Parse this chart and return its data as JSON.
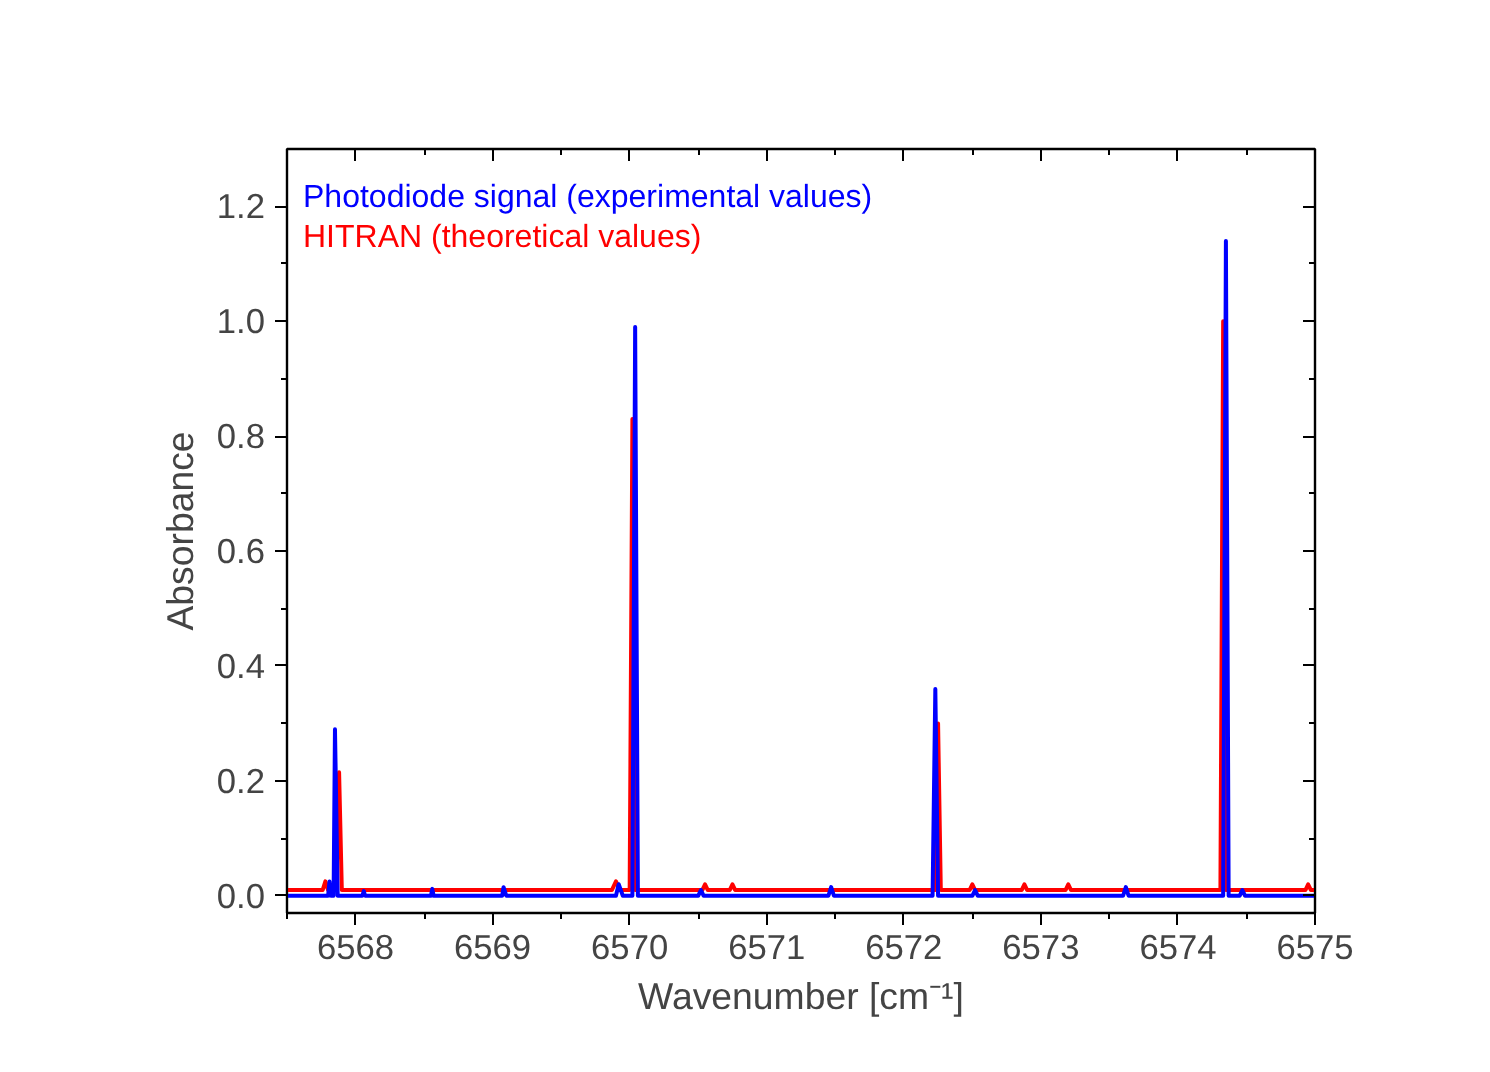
{
  "chart_data": {
    "type": "line",
    "xlabel": "Wavenumber [cm⁻¹]",
    "ylabel": "Absorbance",
    "legend": "top left",
    "marker": "none",
    "line_style": "solid",
    "grid": false,
    "xlim": [
      6567.5,
      6575
    ],
    "xticks": [
      {
        "value": 6567.5,
        "label": null
      },
      6568,
      {
        "value": 6568.5,
        "label": null
      },
      6569,
      {
        "value": 6569.5,
        "label": null
      },
      6570,
      {
        "value": 6570.5,
        "label": null
      },
      6571,
      {
        "value": 6571.5,
        "label": null
      },
      6572,
      {
        "value": 6572.5,
        "label": null
      },
      6573,
      {
        "value": 6573.5,
        "label": null
      },
      6574,
      {
        "value": 6574.5,
        "label": null
      },
      6575
    ],
    "ylim": [
      -0.03,
      1.3
    ],
    "yticks": [
      {
        "value": 0,
        "label": "0.0"
      },
      {
        "value": 0.1,
        "label": null
      },
      {
        "value": 0.2,
        "label": "0.2"
      },
      {
        "value": 0.3,
        "label": null
      },
      {
        "value": 0.4,
        "label": "0.4"
      },
      {
        "value": 0.5,
        "label": null
      },
      {
        "value": 0.6,
        "label": "0.6"
      },
      {
        "value": 0.7,
        "label": null
      },
      {
        "value": 0.8,
        "label": "0.8"
      },
      {
        "value": 0.9,
        "label": null
      },
      {
        "value": 1.0,
        "label": "1.0"
      },
      {
        "value": 1.1,
        "label": null
      },
      {
        "value": 1.2,
        "label": "1.2"
      }
    ],
    "series": [
      {
        "name": "Photodiode signal (experimental values)",
        "color": "#0000ff",
        "x": [
          6567.5,
          6567.8,
          6567.81,
          6567.82,
          6567.84,
          6567.85,
          6567.87,
          6568.05,
          6568.06,
          6568.07,
          6568.55,
          6568.56,
          6568.57,
          6569.07,
          6569.08,
          6569.1,
          6569.9,
          6569.92,
          6569.95,
          6570.02,
          6570.04,
          6570.06,
          6570.5,
          6570.52,
          6570.54,
          6571.45,
          6571.47,
          6571.49,
          6572.21,
          6572.23,
          6572.25,
          6572.5,
          6572.52,
          6572.54,
          6573.6,
          6573.62,
          6573.64,
          6574.33,
          6574.35,
          6574.37,
          6574.45,
          6574.47,
          6574.49,
          6575
        ],
        "values": [
          0,
          0,
          0.025,
          0,
          0,
          0.29,
          0,
          0,
          0.008,
          0,
          0,
          0.012,
          0,
          0,
          0.015,
          0,
          0,
          0.02,
          0,
          0,
          0.99,
          0,
          0,
          0.01,
          0,
          0,
          0.015,
          0,
          0,
          0.36,
          0,
          0,
          0.01,
          0,
          0,
          0.015,
          0,
          0,
          1.14,
          0,
          0,
          0.01,
          0,
          0
        ]
      },
      {
        "name": "HITRAN (theoretical values)",
        "color": "#ff0000",
        "x": [
          6567.5,
          6567.76,
          6567.78,
          6567.8,
          6567.86,
          6567.88,
          6567.9,
          6569.87,
          6569.9,
          6569.93,
          6570.0,
          6570.02,
          6570.04,
          6570.53,
          6570.55,
          6570.57,
          6570.73,
          6570.75,
          6570.77,
          6572.23,
          6572.25,
          6572.27,
          6572.48,
          6572.5,
          6572.52,
          6572.86,
          6572.88,
          6572.9,
          6573.18,
          6573.2,
          6573.22,
          6574.31,
          6574.33,
          6574.35,
          6574.93,
          6574.95,
          6574.97,
          6575
        ],
        "values": [
          0.01,
          0.01,
          0.025,
          0.01,
          0.01,
          0.215,
          0.01,
          0.01,
          0.025,
          0.01,
          0.01,
          0.83,
          0.01,
          0.01,
          0.02,
          0.01,
          0.01,
          0.02,
          0.01,
          0.01,
          0.3,
          0.01,
          0.01,
          0.02,
          0.01,
          0.01,
          0.02,
          0.01,
          0.01,
          0.02,
          0.01,
          0.01,
          1.0,
          0.01,
          0.01,
          0.02,
          0.01,
          0.01
        ]
      }
    ]
  }
}
